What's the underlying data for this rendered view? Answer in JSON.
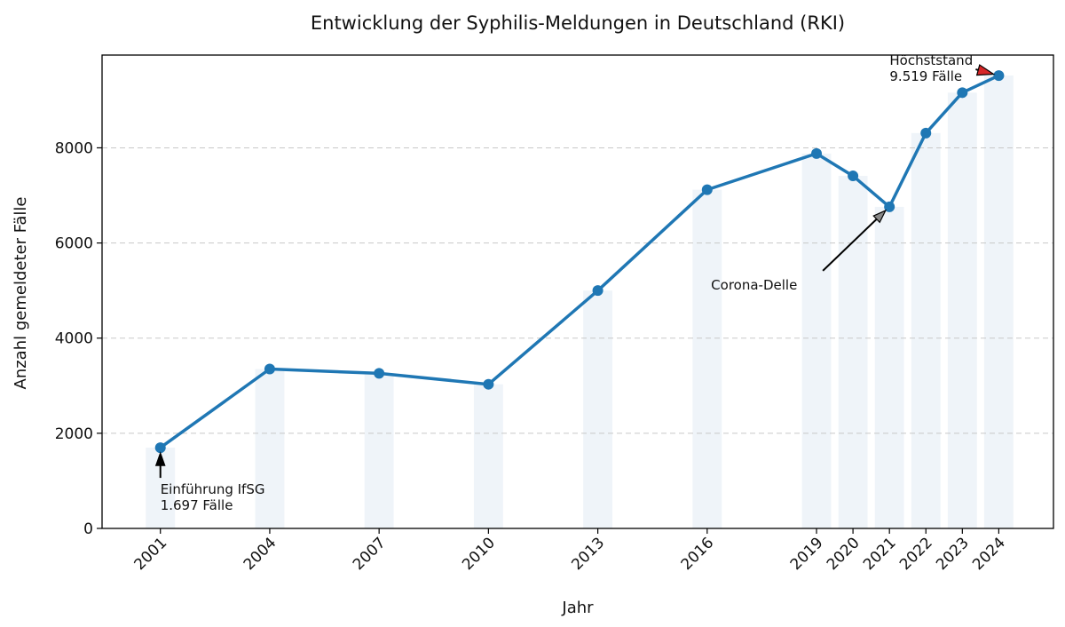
{
  "chart_data": {
    "type": "line",
    "title": "Entwicklung der Syphilis-Meldungen in Deutschland (RKI)",
    "xlabel": "Jahr",
    "ylabel": "Anzahl gemeldeter Fälle",
    "x": [
      2001,
      2004,
      2007,
      2010,
      2013,
      2016,
      2019,
      2020,
      2021,
      2022,
      2023,
      2024
    ],
    "values": [
      1697,
      3350,
      3260,
      3030,
      5000,
      7120,
      7880,
      7410,
      6760,
      8310,
      9160,
      9519
    ],
    "xlim": [
      1999.4,
      2025.5
    ],
    "ylim": [
      0,
      9950
    ],
    "yticks": [
      0,
      2000,
      4000,
      6000,
      8000
    ],
    "yticklabels": [
      "0",
      "2000",
      "4000",
      "6000",
      "8000"
    ],
    "xticklabels": [
      "2001",
      "2004",
      "2007",
      "2010",
      "2013",
      "2016",
      "2019",
      "2020",
      "2021",
      "2022",
      "2023",
      "2024"
    ],
    "grid": "horizontal dashed",
    "line_color": "#1f77b4",
    "background_bars": true,
    "annotations": [
      {
        "id": "ifsg",
        "lines": [
          "Einführung IfSG",
          "1.697 Fälle"
        ],
        "target_x": 2001,
        "target_y": 1697,
        "text_x": 2001,
        "text_y": 760,
        "arrow_color": "#000000"
      },
      {
        "id": "corona",
        "lines": [
          "Corona-Delle"
        ],
        "target_x": 2021,
        "target_y": 6760,
        "text_x": 2018.0,
        "text_y": 5050,
        "arrow_color": "#888888"
      },
      {
        "id": "peak",
        "lines": [
          "Höchststand",
          "9.519 Fälle"
        ],
        "target_x": 2024,
        "target_y": 9519,
        "text_x": 2024,
        "text_y": 9700,
        "arrow_color": "#d62728"
      }
    ]
  }
}
